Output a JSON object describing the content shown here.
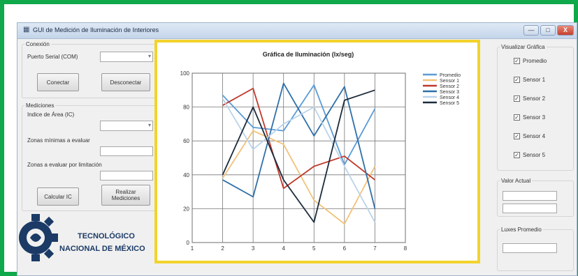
{
  "window": {
    "title": "GUI de Medición de Iluminación de Interiores",
    "controls": {
      "minimize": "—",
      "maximize": "□",
      "close": "X"
    }
  },
  "left": {
    "conexion": {
      "group_label": "Conexión",
      "port_label": "Puerto Serial (COM)",
      "port_value": "",
      "connect_button": "Conectar",
      "disconnect_button": "Desconectar"
    },
    "mediciones": {
      "group_label": "Mediciones",
      "index_label": "Indice de Área (IC)",
      "min_zones_label": "Zonas mínimas a evaluar",
      "limited_zones_label": "Zonas a evaluar por limitación",
      "calc_button": "Calcular IC",
      "measure_button_line1": "Realizar",
      "measure_button_line2": "Mediciones"
    },
    "logo": {
      "line1": "TECNOLÓGICO",
      "line2": "NACIONAL DE MÉXICO"
    }
  },
  "right": {
    "visualizar": {
      "group_label": "Visualizar Gráfica",
      "items": [
        {
          "label": "Promedio",
          "checked": true
        },
        {
          "label": "Sensor 1",
          "checked": true
        },
        {
          "label": "Sensor 2",
          "checked": true
        },
        {
          "label": "Sensor 3",
          "checked": true
        },
        {
          "label": "Sensor 4",
          "checked": true
        },
        {
          "label": "Sensor 5",
          "checked": true
        }
      ]
    },
    "valor_actual": {
      "group_label": "Valor Actual"
    },
    "lux_promedio": {
      "group_label": "Luxes Promedio"
    }
  },
  "chart_data": {
    "type": "line",
    "title": "Gráfica de Iluminación (lx/seg)",
    "xlim": [
      1,
      8
    ],
    "ylim": [
      0,
      100
    ],
    "xticks": [
      1,
      2,
      3,
      4,
      5,
      6,
      7,
      8
    ],
    "yticks": [
      0,
      20,
      40,
      60,
      80,
      100
    ],
    "grid": true,
    "legend": "top-right",
    "x": [
      2,
      3,
      4,
      5,
      6,
      7
    ],
    "series": [
      {
        "name": "Promedio",
        "color": "#5b9bd5",
        "values": [
          87,
          68,
          66,
          93,
          46,
          79
        ]
      },
      {
        "name": "Sensor 1",
        "color": "#f2c27a",
        "values": [
          38,
          66,
          58,
          25,
          11,
          45
        ]
      },
      {
        "name": "Sensor 2",
        "color": "#c0392b",
        "values": [
          81,
          91,
          32,
          45,
          51,
          37
        ]
      },
      {
        "name": "Sensor 3",
        "color": "#2f6fa8",
        "values": [
          37,
          27,
          94,
          63,
          92,
          20
        ]
      },
      {
        "name": "Sensor 4",
        "color": "#b9d3ea",
        "values": [
          85,
          55,
          70,
          80,
          45,
          12
        ]
      },
      {
        "name": "Sensor 5",
        "color": "#1c2b3c",
        "values": [
          40,
          80,
          37,
          12,
          84,
          90
        ]
      }
    ]
  }
}
